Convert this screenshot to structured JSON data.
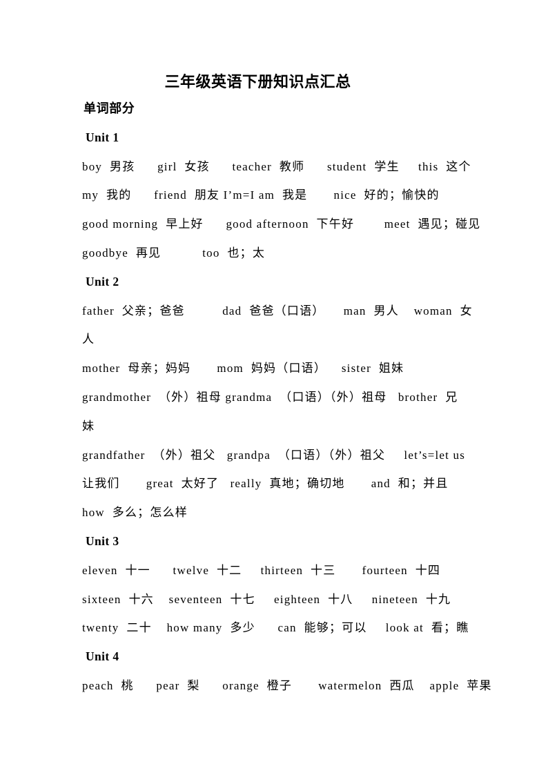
{
  "document": {
    "title": "三年级英语下册知识点汇总",
    "section": "单词部分",
    "units": [
      {
        "label": "Unit 1",
        "lines": [
          "boy  男孩      girl  女孩      teacher  教师      student  学生     this  这个",
          "my  我的      friend  朋友 I’m=I am  我是       nice  好的；愉快的",
          "good morning  早上好      good afternoon  下午好        meet  遇见；碰见",
          "goodbye  再见           too  也；太"
        ]
      },
      {
        "label": "Unit 2",
        "lines": [
          "father  父亲；爸爸          dad  爸爸（口语）     man  男人    woman  女",
          "人",
          "mother  母亲；妈妈       mom  妈妈（口语）    sister  姐妹",
          "grandmother  （外）祖母 grandma  （口语）（外）祖母   brother  兄",
          "妹",
          "grandfather  （外）祖父   grandpa  （口语）（外）祖父     let’s=let us",
          "让我们       great  太好了   really  真地；确切地       and  和；并且",
          "how  多么；怎么样"
        ]
      },
      {
        "label": "Unit 3",
        "lines": [
          "eleven  十一      twelve  十二     thirteen  十三       fourteen  十四",
          "sixteen  十六    seventeen  十七     eighteen  十八     nineteen  十九",
          "twenty  二十    how many  多少      can  能够；可以     look at  看；瞧"
        ]
      },
      {
        "label": "Unit 4",
        "lines": [
          "peach  桃      pear  梨      orange  橙子       watermelon  西瓜    apple  苹果"
        ]
      }
    ]
  }
}
